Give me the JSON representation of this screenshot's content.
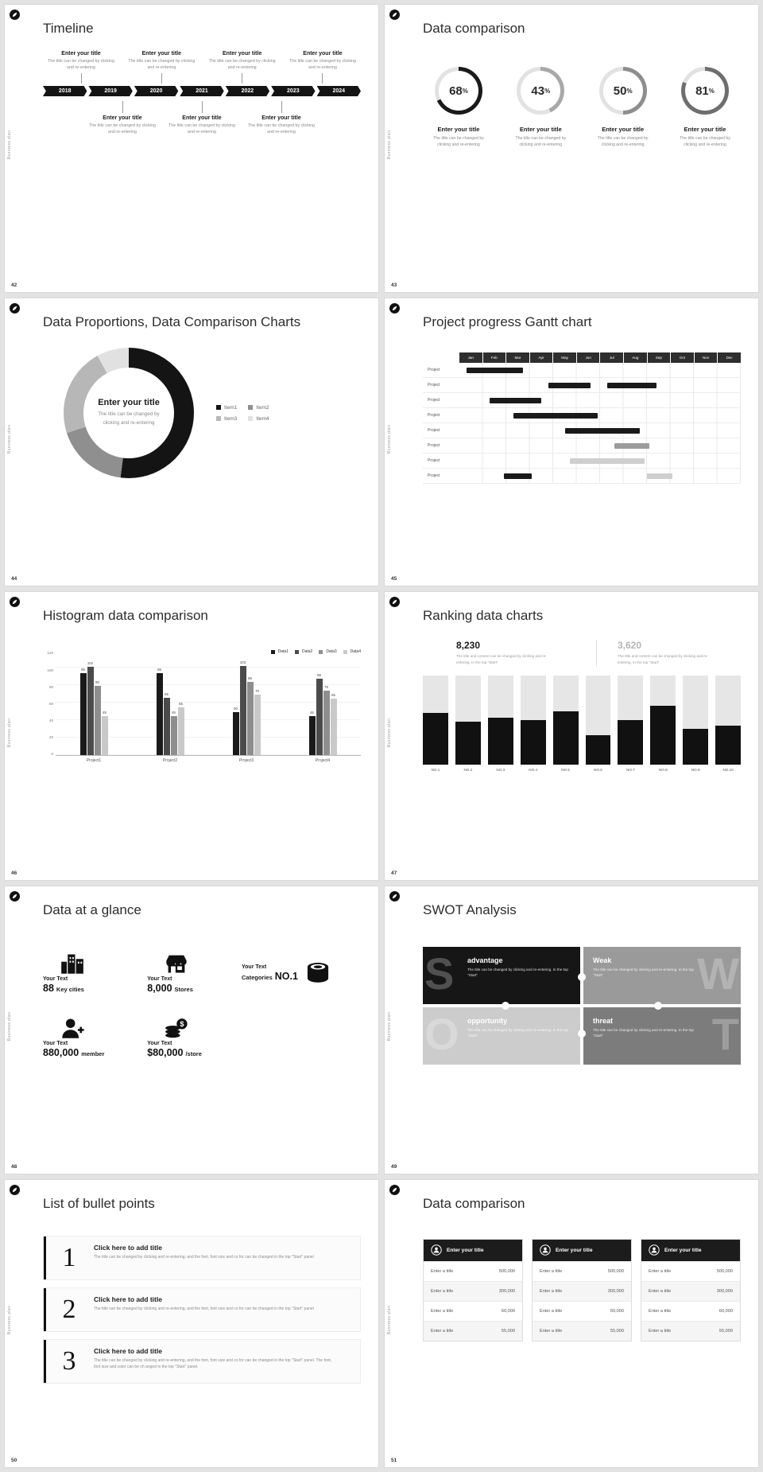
{
  "common": {
    "brand": "Business plan",
    "enter_title": "Enter your title",
    "change_desc": "The title can be changed by clicking and re-entering",
    "percent_sign": "%"
  },
  "slides": {
    "timeline": {
      "number": "42",
      "title": "Timeline",
      "years": [
        "2018",
        "2019",
        "2020",
        "2021",
        "2022",
        "2023",
        "2024"
      ]
    },
    "rings": {
      "number": "43",
      "title": "Data comparison",
      "chart_data": {
        "type": "donut",
        "items": [
          {
            "pct": 68,
            "color": "#1a1a1a",
            "track": "#e2e2e2"
          },
          {
            "pct": 43,
            "color": "#a8a8a8",
            "track": "#e2e2e2"
          },
          {
            "pct": 50,
            "color": "#8e8e8e",
            "track": "#e2e2e2"
          },
          {
            "pct": 81,
            "color": "#6e6e6e",
            "track": "#e2e2e2"
          }
        ]
      }
    },
    "donut": {
      "number": "44",
      "title": "Data Proportions, Data Comparison Charts",
      "center_desc": "The title can be changed by clicking and re-entering",
      "chart_data": {
        "type": "pie",
        "labels": [
          "Item1",
          "Item2",
          "Item3",
          "Item4"
        ],
        "values": [
          52,
          18,
          22,
          8
        ],
        "colors": [
          "#141414",
          "#8f8f8f",
          "#b7b7b7",
          "#e1e1e1"
        ]
      }
    },
    "gantt": {
      "number": "45",
      "title": "Project progress Gantt chart",
      "row_label": "Project",
      "chart_data": {
        "type": "gantt",
        "months": [
          "Jan",
          "Feb",
          "Mar",
          "Apr",
          "May",
          "Jun",
          "Jul",
          "Aug",
          "Sep",
          "Oct",
          "Nov",
          "Dec"
        ],
        "rows": [
          {
            "bars": [
              {
                "s": 0.3,
                "e": 2.7,
                "c": "#1a1a1a"
              }
            ]
          },
          {
            "bars": [
              {
                "s": 3.8,
                "e": 5.6,
                "c": "#1a1a1a"
              },
              {
                "s": 6.3,
                "e": 8.4,
                "c": "#1a1a1a"
              }
            ]
          },
          {
            "bars": [
              {
                "s": 1.3,
                "e": 3.5,
                "c": "#1a1a1a"
              }
            ]
          },
          {
            "bars": [
              {
                "s": 2.3,
                "e": 5.9,
                "c": "#1a1a1a"
              }
            ]
          },
          {
            "bars": [
              {
                "s": 4.5,
                "e": 7.7,
                "c": "#1a1a1a"
              }
            ]
          },
          {
            "bars": [
              {
                "s": 6.6,
                "e": 8.1,
                "c": "#9c9c9c"
              }
            ]
          },
          {
            "bars": [
              {
                "s": 4.7,
                "e": 7.9,
                "c": "#cfcfcf"
              }
            ]
          },
          {
            "bars": [
              {
                "s": 1.9,
                "e": 3.1,
                "c": "#1a1a1a"
              },
              {
                "s": 8.0,
                "e": 9.1,
                "c": "#cfcfcf"
              }
            ]
          }
        ]
      }
    },
    "histogram": {
      "number": "46",
      "title": "Histogram data comparison",
      "chart_data": {
        "type": "bar",
        "categories": [
          "Project1",
          "Project2",
          "Project3",
          "Project4"
        ],
        "yticks": [
          "120",
          "100",
          "80",
          "60",
          "40",
          "20",
          "0"
        ],
        "ylim": [
          0,
          120
        ],
        "series": [
          {
            "name": "Data1",
            "color": "#1a1a1a",
            "values": [
              95,
              95,
              50,
              45
            ]
          },
          {
            "name": "Data2",
            "color": "#4b4b4b",
            "values": [
              102,
              66,
              103,
              88
            ]
          },
          {
            "name": "Data3",
            "color": "#8e8e8e",
            "values": [
              80,
              45,
              85,
              75
            ]
          },
          {
            "name": "Data4",
            "color": "#c9c9c9",
            "values": [
              45,
              55,
              70,
              65
            ]
          }
        ]
      }
    },
    "ranking": {
      "number": "47",
      "title": "Ranking data charts",
      "stat1": {
        "value": "8,230",
        "desc": "The title and content can be changed by clicking and re-entering. In the top \"Start\""
      },
      "stat2": {
        "value": "3,620",
        "desc": "The title and content can be changed by clicking and re-entering. In the top \"Start\""
      },
      "chart_data": {
        "type": "bar",
        "categories": [
          "NO.1",
          "NO.2",
          "NO.3",
          "NO.4",
          "NO.5",
          "NO.6",
          "NO.7",
          "NO.8",
          "NO.9",
          "NO.10"
        ],
        "values": [
          58,
          48,
          53,
          50,
          60,
          33,
          50,
          66,
          40,
          44
        ],
        "ylim": [
          0,
          100
        ]
      }
    },
    "glance": {
      "number": "48",
      "title": "Data at a glance",
      "items": [
        {
          "label": "Your Text",
          "value": "88",
          "unit": "Key cities"
        },
        {
          "label": "Your Text",
          "value": "8,000",
          "unit": "Stores"
        },
        {
          "label": "Your Text",
          "prefix": "Categories",
          "value": "NO.1"
        },
        {
          "label": "Your Text",
          "value": "880,000",
          "unit": "member"
        },
        {
          "label": "Your Text",
          "value": "$80,000",
          "unit": "/store"
        }
      ]
    },
    "swot": {
      "number": "49",
      "title": "SWOT Analysis",
      "quads": [
        {
          "letter": "S",
          "label": "advantage",
          "desc": "The title can be changed by clicking and re-entering. In the top \"Start\"",
          "color": "#161616"
        },
        {
          "letter": "W",
          "label": "Weak",
          "desc": "The title can be changed by clicking and re-entering. In the top \"Start\"",
          "color": "#9a9a9a"
        },
        {
          "letter": "O",
          "label": "opportunity",
          "desc": "The title can be changed by clicking and re-entering. In the top \"Start\"",
          "color": "#cccccc"
        },
        {
          "letter": "T",
          "label": "threat",
          "desc": "The title can be changed by clicking and re-entering. In the top \"Start\"",
          "color": "#7c7c7c"
        }
      ]
    },
    "bullets": {
      "number": "50",
      "title": "List of bullet points",
      "items": [
        {
          "num": "1",
          "heading": "Click here to add title",
          "desc": "The title can be changed by clicking and re-entering, and the font, font size and co for can be changed in the top \"Start\" panel"
        },
        {
          "num": "2",
          "heading": "Click here to add title",
          "desc": "The title can be changed by clicking and re-entering, and the font, font size and co for can be changed in the top \"Start\" panel"
        },
        {
          "num": "3",
          "heading": "Click here to add title",
          "desc": "The title can be changed by clicking and re-entering, and the font, font size and co for can be changed in the top \"Start\" panel. The font, font size and color can be ch anged in the top \"Start\" panel."
        }
      ]
    },
    "cards": {
      "number": "51",
      "title": "Data comparison",
      "header": "Enter your title",
      "rows": [
        {
          "label": "Enter a title",
          "value": "500,000"
        },
        {
          "label": "Enter a title",
          "value": "300,000"
        },
        {
          "label": "Enter a title",
          "value": "60,000"
        },
        {
          "label": "Enter a title",
          "value": "55,000"
        }
      ]
    }
  }
}
